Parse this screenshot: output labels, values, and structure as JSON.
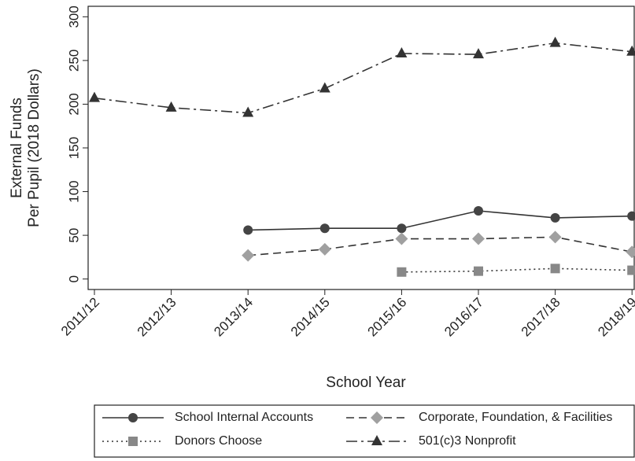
{
  "chart_data": {
    "type": "line",
    "xlabel": "School Year",
    "ylabel": [
      "External Funds",
      "Per Pupil (2018 Dollars)"
    ],
    "categories": [
      "2011/12",
      "2012/13",
      "2013/14",
      "2014/15",
      "2015/16",
      "2016/17",
      "2017/18",
      "2018/19"
    ],
    "series": [
      {
        "name": "School Internal Accounts",
        "color": "#333333",
        "marker_color": "#444444",
        "marker": "circle",
        "dash": "solid",
        "values": [
          null,
          null,
          56,
          58,
          58,
          78,
          70,
          72
        ]
      },
      {
        "name": "Corporate, Foundation, & Facilities",
        "color": "#333333",
        "marker_color": "#a0a0a0",
        "marker": "diamond",
        "dash": "dashed",
        "values": [
          null,
          null,
          27,
          34,
          46,
          46,
          48,
          31
        ]
      },
      {
        "name": "Donors Choose",
        "color": "#333333",
        "marker_color": "#888888",
        "marker": "square",
        "dash": "dotted",
        "values": [
          null,
          null,
          null,
          null,
          8,
          9,
          12,
          10
        ]
      },
      {
        "name": "501(c)3 Nonprofit",
        "color": "#333333",
        "marker_color": "#333333",
        "marker": "triangle",
        "dash": "dashdot",
        "values": [
          207,
          196,
          190,
          218,
          258,
          257,
          270,
          260
        ]
      }
    ],
    "ylim": [
      -12,
      312
    ],
    "yticks": [
      0,
      50,
      100,
      150,
      200,
      250,
      300
    ],
    "grid": false,
    "legend": "bottom"
  }
}
